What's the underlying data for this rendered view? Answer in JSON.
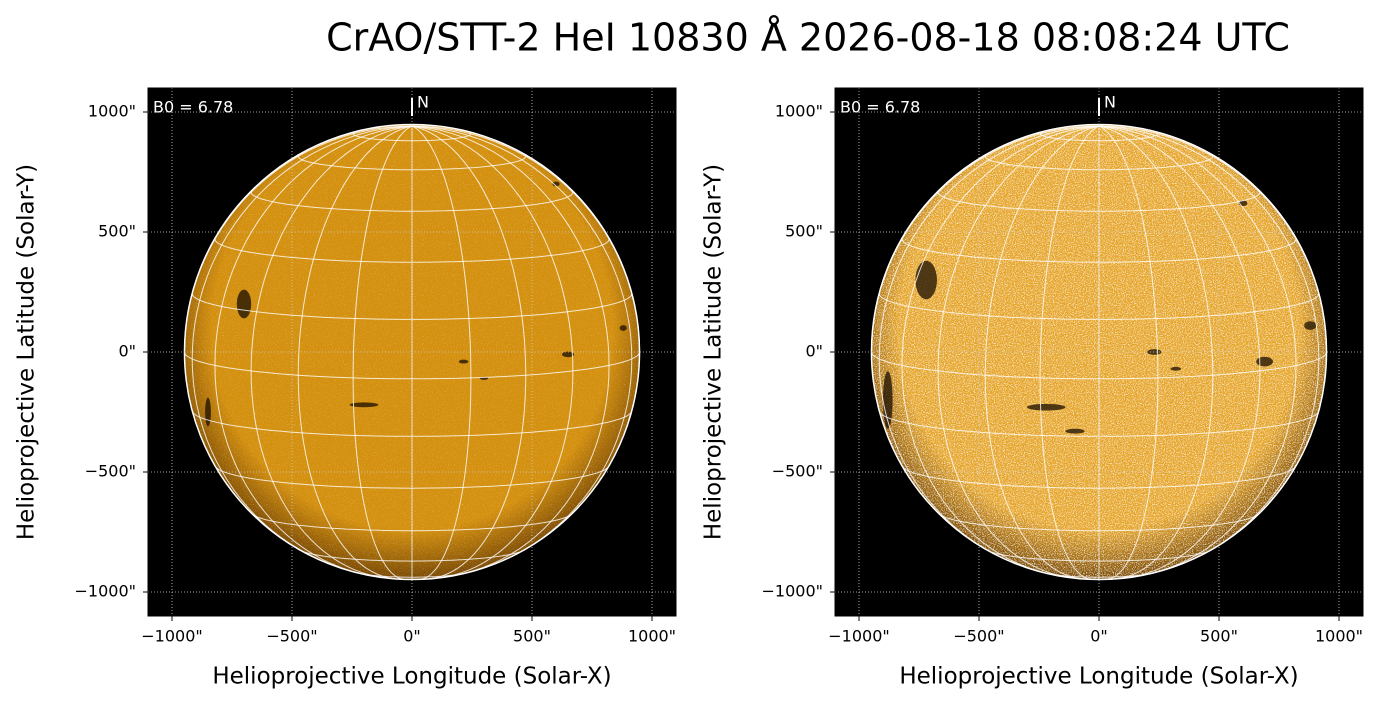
{
  "title": "CrAO/STT-2 HeI 10830 Å 2026-08-18 08:08:24 UTC",
  "chart_data": [
    {
      "type": "image",
      "annotation": "B0 = 6.78",
      "north_label": "N",
      "xlabel": "Helioprojective Longitude (Solar-X)",
      "ylabel": "Helioprojective Latitude (Solar-Y)",
      "xlim": [
        -1100,
        1100
      ],
      "ylim": [
        -1100,
        1100
      ],
      "disk_radius": 948,
      "color": "#d4900f",
      "grid": true,
      "xticks": [
        {
          "value": -1000,
          "label": "−1000\""
        },
        {
          "value": -500,
          "label": "−500\""
        },
        {
          "value": 0,
          "label": "0\""
        },
        {
          "value": 500,
          "label": "500\""
        },
        {
          "value": 1000,
          "label": "1000\""
        }
      ],
      "yticks": [
        {
          "value": -1000,
          "label": "−1000\""
        },
        {
          "value": -500,
          "label": "−500\""
        },
        {
          "value": 0,
          "label": "0\""
        },
        {
          "value": 500,
          "label": "500\""
        },
        {
          "value": 1000,
          "label": "1000\""
        }
      ]
    },
    {
      "type": "image",
      "annotation": "B0 = 6.78",
      "north_label": "N",
      "xlabel": "Helioprojective Longitude (Solar-X)",
      "ylabel": "Helioprojective Latitude (Solar-Y)",
      "xlim": [
        -1100,
        1100
      ],
      "ylim": [
        -1100,
        1100
      ],
      "disk_radius": 948,
      "color": "#e6a52a",
      "grid": true,
      "xticks": [
        {
          "value": -1000,
          "label": "−1000\""
        },
        {
          "value": -500,
          "label": "−500\""
        },
        {
          "value": 0,
          "label": "0\""
        },
        {
          "value": 500,
          "label": "500\""
        },
        {
          "value": 1000,
          "label": "1000\""
        }
      ],
      "yticks": [
        {
          "value": -1000,
          "label": "−1000\""
        },
        {
          "value": -500,
          "label": "−500\""
        },
        {
          "value": 0,
          "label": "0\""
        },
        {
          "value": 500,
          "label": "500\""
        },
        {
          "value": 1000,
          "label": "1000\""
        }
      ]
    }
  ]
}
